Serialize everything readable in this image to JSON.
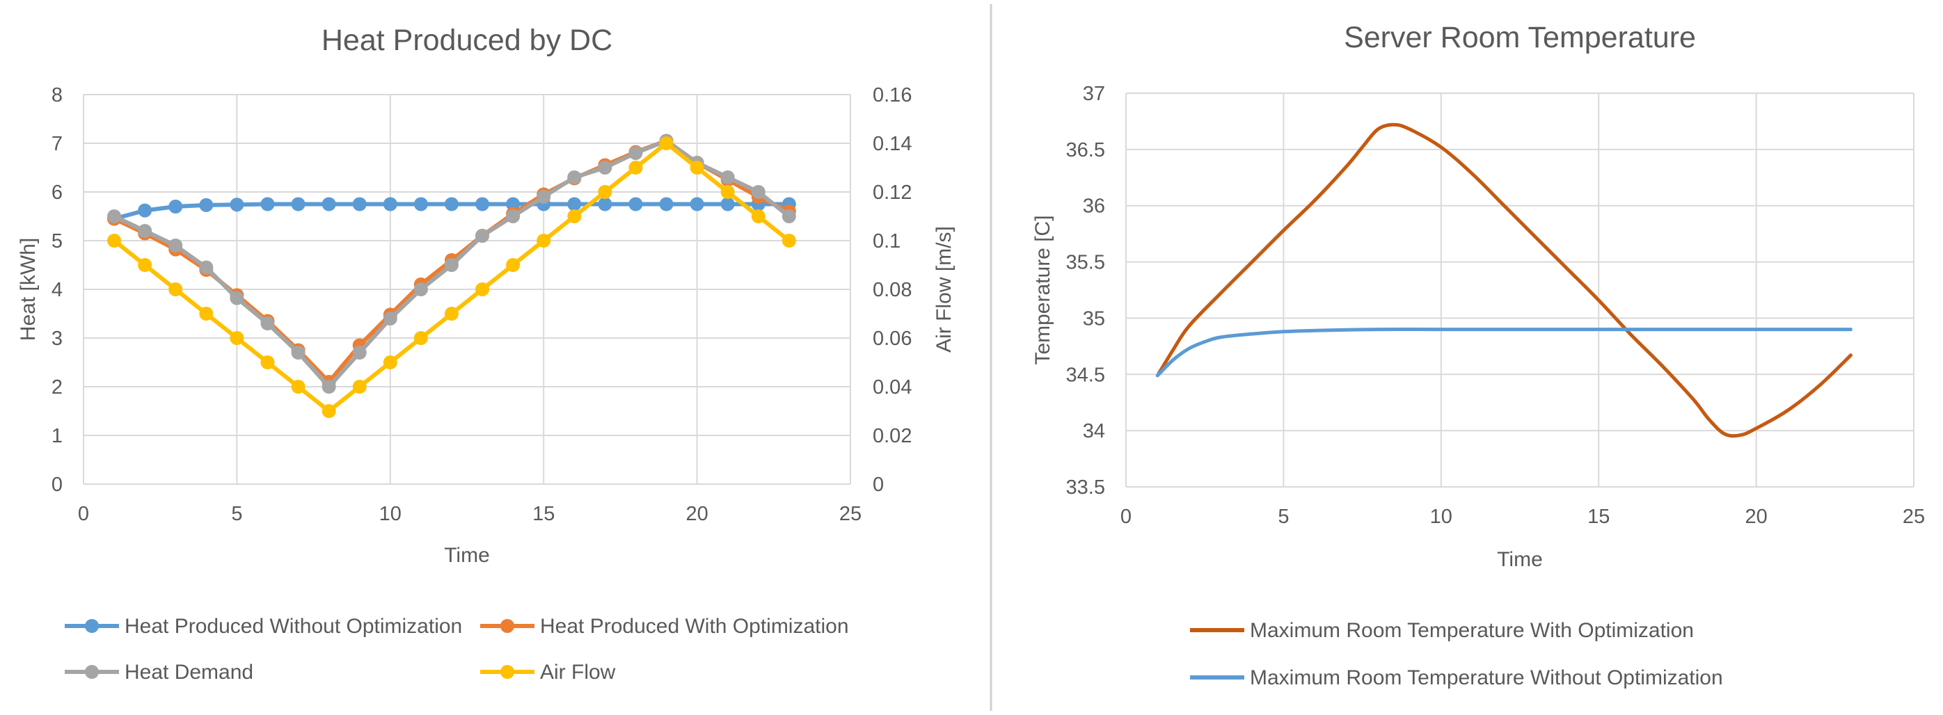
{
  "colors": {
    "blue": "#5B9BD5",
    "orange": "#ED7D31",
    "gray": "#A5A5A5",
    "yellow": "#FFC000",
    "rust": "#C55A11",
    "grid": "#D9D9D9",
    "text": "#595959",
    "divider": "#D0D0D0"
  },
  "chart_data": [
    {
      "type": "line",
      "title": "Heat Produced by DC",
      "xlabel": "Time",
      "ylabel": "Heat [kWh]",
      "y2label": "Air Flow [m/s]",
      "xlim": [
        0,
        25
      ],
      "ylim": [
        0,
        8
      ],
      "y2lim": [
        0,
        0.16
      ],
      "xticks": [
        "0",
        "5",
        "10",
        "15",
        "20",
        "25"
      ],
      "yticks": [
        "0",
        "1",
        "2",
        "3",
        "4",
        "5",
        "6",
        "7",
        "8"
      ],
      "y2ticks": [
        "0",
        "0.02",
        "0.04",
        "0.06",
        "0.08",
        "0.1",
        "0.12",
        "0.14",
        "0.16"
      ],
      "grid": true,
      "legend": "bottom",
      "x": [
        1,
        2,
        3,
        4,
        5,
        6,
        7,
        8,
        9,
        10,
        11,
        12,
        13,
        14,
        15,
        16,
        17,
        18,
        19,
        20,
        21,
        22,
        23
      ],
      "series": [
        {
          "name": "Heat Produced Without Optimization",
          "axis": "left",
          "color_key": "blue",
          "markers": true,
          "values": [
            5.45,
            5.62,
            5.7,
            5.73,
            5.74,
            5.75,
            5.75,
            5.75,
            5.75,
            5.75,
            5.75,
            5.75,
            5.75,
            5.75,
            5.75,
            5.75,
            5.75,
            5.75,
            5.75,
            5.75,
            5.75,
            5.75,
            5.75
          ]
        },
        {
          "name": "Heat Produced With Optimization",
          "axis": "left",
          "color_key": "orange",
          "markers": true,
          "values": [
            5.45,
            5.15,
            4.82,
            4.4,
            3.88,
            3.35,
            2.75,
            2.1,
            2.85,
            3.48,
            4.1,
            4.6,
            5.1,
            5.55,
            5.95,
            6.28,
            6.55,
            6.82,
            7.05,
            6.6,
            6.25,
            5.9,
            5.6
          ]
        },
        {
          "name": "Heat Demand",
          "axis": "left",
          "color_key": "gray",
          "markers": true,
          "values": [
            5.5,
            5.2,
            4.9,
            4.45,
            3.82,
            3.3,
            2.7,
            2.0,
            2.7,
            3.4,
            4.0,
            4.5,
            5.1,
            5.5,
            5.9,
            6.3,
            6.5,
            6.8,
            7.05,
            6.6,
            6.3,
            6.0,
            5.5
          ]
        },
        {
          "name": "Air Flow",
          "axis": "right",
          "color_key": "yellow",
          "markers": true,
          "values": [
            0.1,
            0.09,
            0.08,
            0.07,
            0.06,
            0.05,
            0.04,
            0.03,
            0.04,
            0.05,
            0.06,
            0.07,
            0.08,
            0.09,
            0.1,
            0.11,
            0.12,
            0.13,
            0.14,
            0.13,
            0.12,
            0.11,
            0.1
          ]
        }
      ]
    },
    {
      "type": "line",
      "title": "Server Room Temperature",
      "xlabel": "Time",
      "ylabel": "Temperature  [C]",
      "xlim": [
        0,
        25
      ],
      "ylim": [
        33.5,
        37
      ],
      "xticks": [
        "0",
        "5",
        "10",
        "15",
        "20",
        "25"
      ],
      "yticks": [
        "33.5",
        "34",
        "34.5",
        "35",
        "35.5",
        "36",
        "36.5",
        "37"
      ],
      "grid": true,
      "legend": "bottom",
      "series": [
        {
          "name": "Maximum Room Temperature With Optimization",
          "color_key": "rust",
          "markers": false,
          "x": [
            1,
            1.5,
            2,
            3,
            4,
            5,
            6,
            7,
            7.5,
            8,
            8.5,
            9,
            10,
            11,
            12,
            13,
            14,
            15,
            16,
            17,
            18,
            18.5,
            19,
            19.5,
            20,
            21,
            22,
            23
          ],
          "values": [
            34.49,
            34.72,
            34.93,
            35.22,
            35.5,
            35.78,
            36.05,
            36.35,
            36.52,
            36.68,
            36.72,
            36.68,
            36.52,
            36.28,
            36.0,
            35.72,
            35.44,
            35.16,
            34.86,
            34.58,
            34.28,
            34.1,
            33.97,
            33.96,
            34.02,
            34.18,
            34.4,
            34.67
          ]
        },
        {
          "name": "Maximum Room Temperature Without Optimization",
          "color_key": "blue",
          "markers": false,
          "x": [
            1,
            1.5,
            2,
            2.5,
            3,
            4,
            5,
            6,
            8,
            10,
            15,
            20,
            23
          ],
          "values": [
            34.49,
            34.63,
            34.73,
            34.79,
            34.83,
            34.86,
            34.88,
            34.89,
            34.9,
            34.9,
            34.9,
            34.9,
            34.9
          ]
        }
      ]
    }
  ]
}
